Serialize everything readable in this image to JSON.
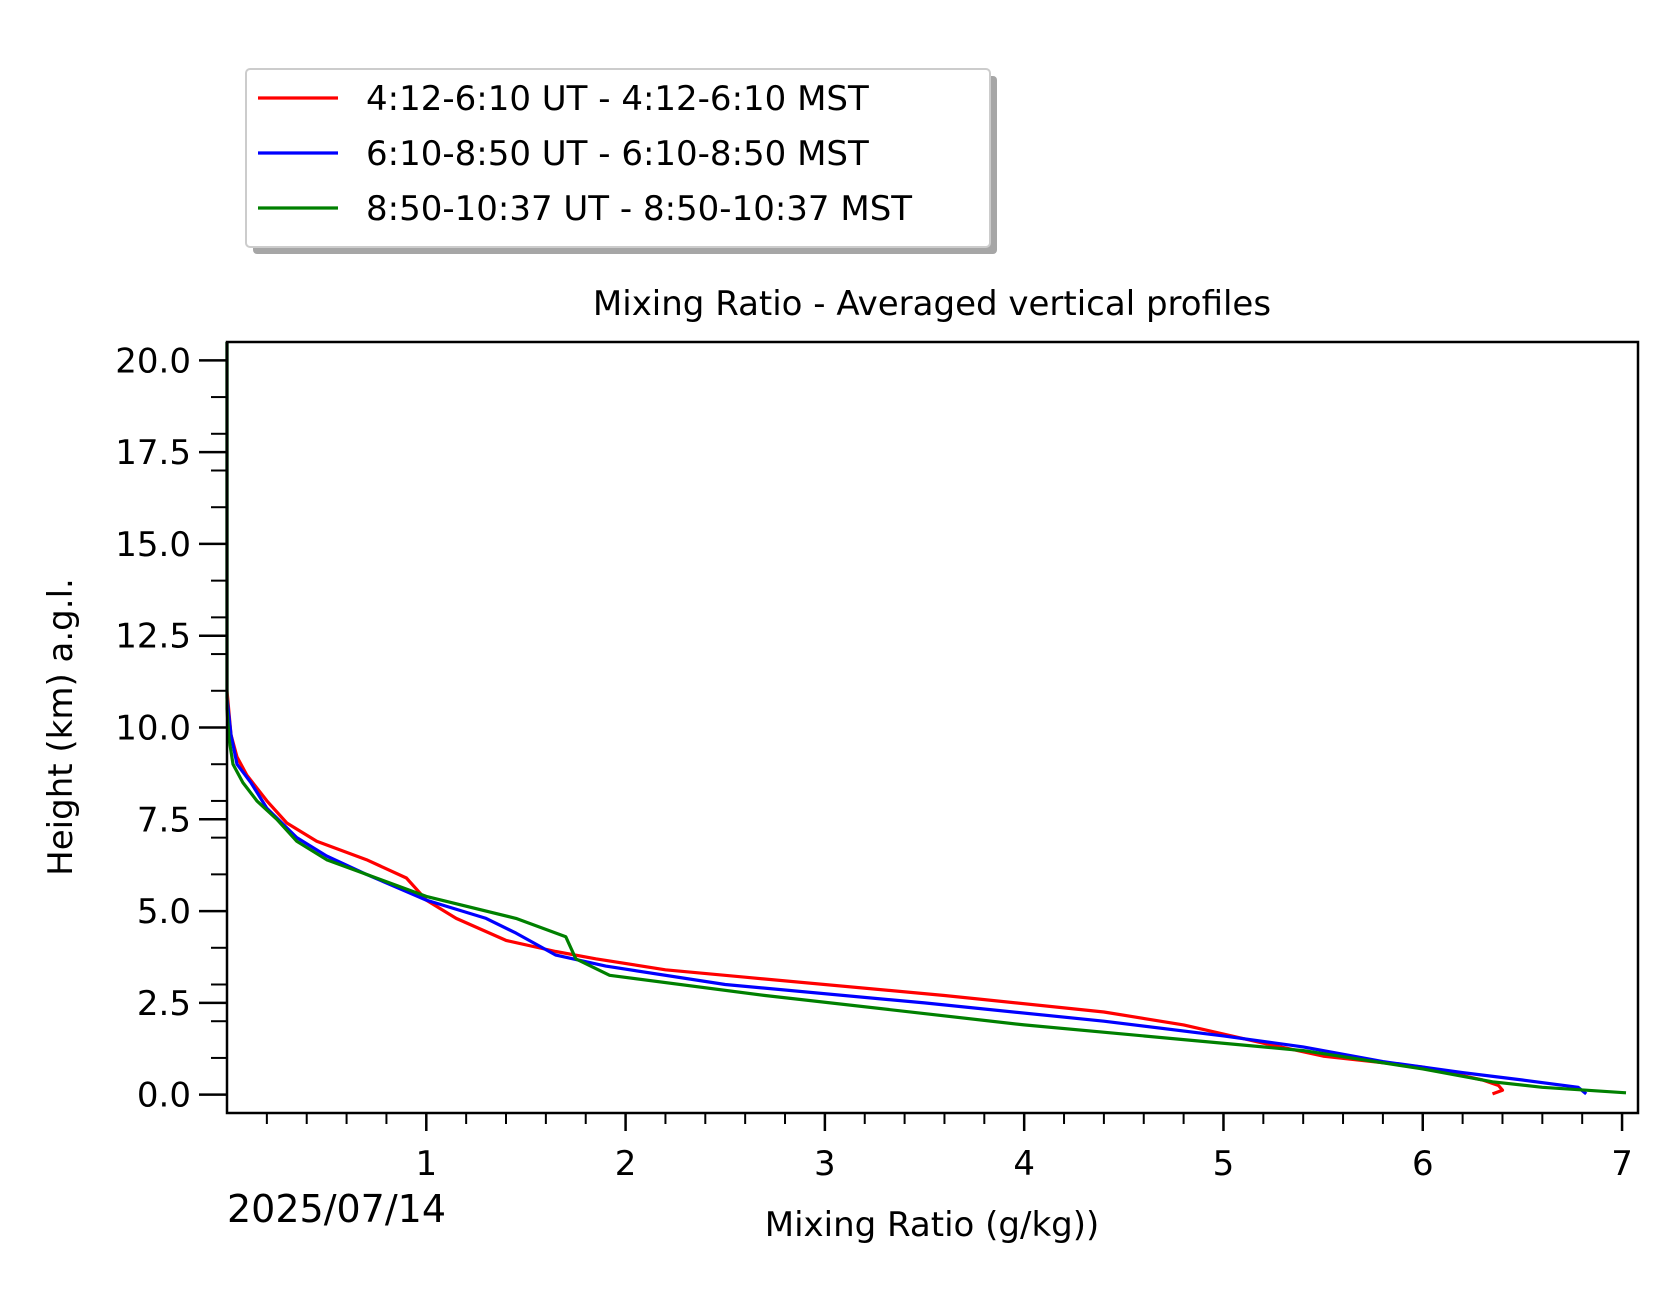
{
  "chart_data": {
    "type": "line",
    "title": "Mixing Ratio - Averaged vertical profiles",
    "xlabel": "Mixing Ratio (g/kg))",
    "ylabel": "Height (km) a.g.l.",
    "date_label": "2025/07/14",
    "xlim": [
      0,
      7.08
    ],
    "ylim": [
      -0.5,
      20.5
    ],
    "x_ticks": [
      1,
      2,
      3,
      4,
      5,
      6,
      7
    ],
    "x_tick_labels": [
      "1",
      "2",
      "3",
      "4",
      "5",
      "6",
      "7"
    ],
    "y_ticks": [
      0,
      2.5,
      5,
      7.5,
      10,
      12.5,
      15,
      17.5,
      20
    ],
    "y_tick_labels": [
      "0.0",
      "2.5",
      "5.0",
      "7.5",
      "10.0",
      "12.5",
      "15.0",
      "17.5",
      "20.0"
    ],
    "grid": false,
    "legend_position": "above plot, top-left",
    "series": [
      {
        "name": "4:12-6:10 UT - 4:12-6:10 MST",
        "color": "#ff0000",
        "points": [
          [
            6.35,
            0.02
          ],
          [
            6.4,
            0.12
          ],
          [
            6.38,
            0.25
          ],
          [
            6.3,
            0.4
          ],
          [
            6.0,
            0.75
          ],
          [
            5.5,
            1.05
          ],
          [
            5.2,
            1.4
          ],
          [
            4.8,
            1.9
          ],
          [
            4.4,
            2.25
          ],
          [
            3.6,
            2.7
          ],
          [
            2.6,
            3.2
          ],
          [
            2.2,
            3.4
          ],
          [
            1.85,
            3.7
          ],
          [
            1.65,
            3.9
          ],
          [
            1.4,
            4.2
          ],
          [
            1.15,
            4.8
          ],
          [
            1.0,
            5.3
          ],
          [
            0.9,
            5.9
          ],
          [
            0.7,
            6.4
          ],
          [
            0.45,
            6.9
          ],
          [
            0.3,
            7.4
          ],
          [
            0.2,
            8.0
          ],
          [
            0.1,
            8.7
          ],
          [
            0.05,
            9.2
          ],
          [
            0.02,
            9.8
          ],
          [
            0.0,
            11.0
          ],
          [
            0.0,
            20.5
          ]
        ]
      },
      {
        "name": "6:10-8:50 UT - 6:10-8:50 MST",
        "color": "#0000ff",
        "points": [
          [
            6.82,
            0.02
          ],
          [
            6.78,
            0.2
          ],
          [
            6.5,
            0.4
          ],
          [
            6.2,
            0.6
          ],
          [
            5.8,
            0.9
          ],
          [
            5.4,
            1.3
          ],
          [
            5.0,
            1.6
          ],
          [
            4.4,
            2.0
          ],
          [
            3.5,
            2.5
          ],
          [
            2.5,
            3.0
          ],
          [
            1.9,
            3.5
          ],
          [
            1.65,
            3.8
          ],
          [
            1.45,
            4.4
          ],
          [
            1.3,
            4.8
          ],
          [
            1.0,
            5.3
          ],
          [
            0.7,
            6.0
          ],
          [
            0.5,
            6.5
          ],
          [
            0.35,
            7.0
          ],
          [
            0.2,
            7.8
          ],
          [
            0.12,
            8.5
          ],
          [
            0.05,
            9.0
          ],
          [
            0.02,
            9.8
          ],
          [
            0.0,
            10.8
          ],
          [
            0.0,
            20.5
          ]
        ]
      },
      {
        "name": "8:50-10:37 UT - 8:50-10:37 MST",
        "color": "#008000",
        "points": [
          [
            7.02,
            0.05
          ],
          [
            6.6,
            0.2
          ],
          [
            6.35,
            0.35
          ],
          [
            6.0,
            0.7
          ],
          [
            5.4,
            1.2
          ],
          [
            4.8,
            1.5
          ],
          [
            4.0,
            1.9
          ],
          [
            2.7,
            2.7
          ],
          [
            1.92,
            3.25
          ],
          [
            1.75,
            3.7
          ],
          [
            1.7,
            4.3
          ],
          [
            1.45,
            4.8
          ],
          [
            1.0,
            5.4
          ],
          [
            0.7,
            6.0
          ],
          [
            0.5,
            6.4
          ],
          [
            0.35,
            6.9
          ],
          [
            0.25,
            7.5
          ],
          [
            0.15,
            8.0
          ],
          [
            0.08,
            8.5
          ],
          [
            0.03,
            9.0
          ],
          [
            0.01,
            9.7
          ],
          [
            0.0,
            10.5
          ],
          [
            0.0,
            20.5
          ]
        ]
      }
    ]
  }
}
